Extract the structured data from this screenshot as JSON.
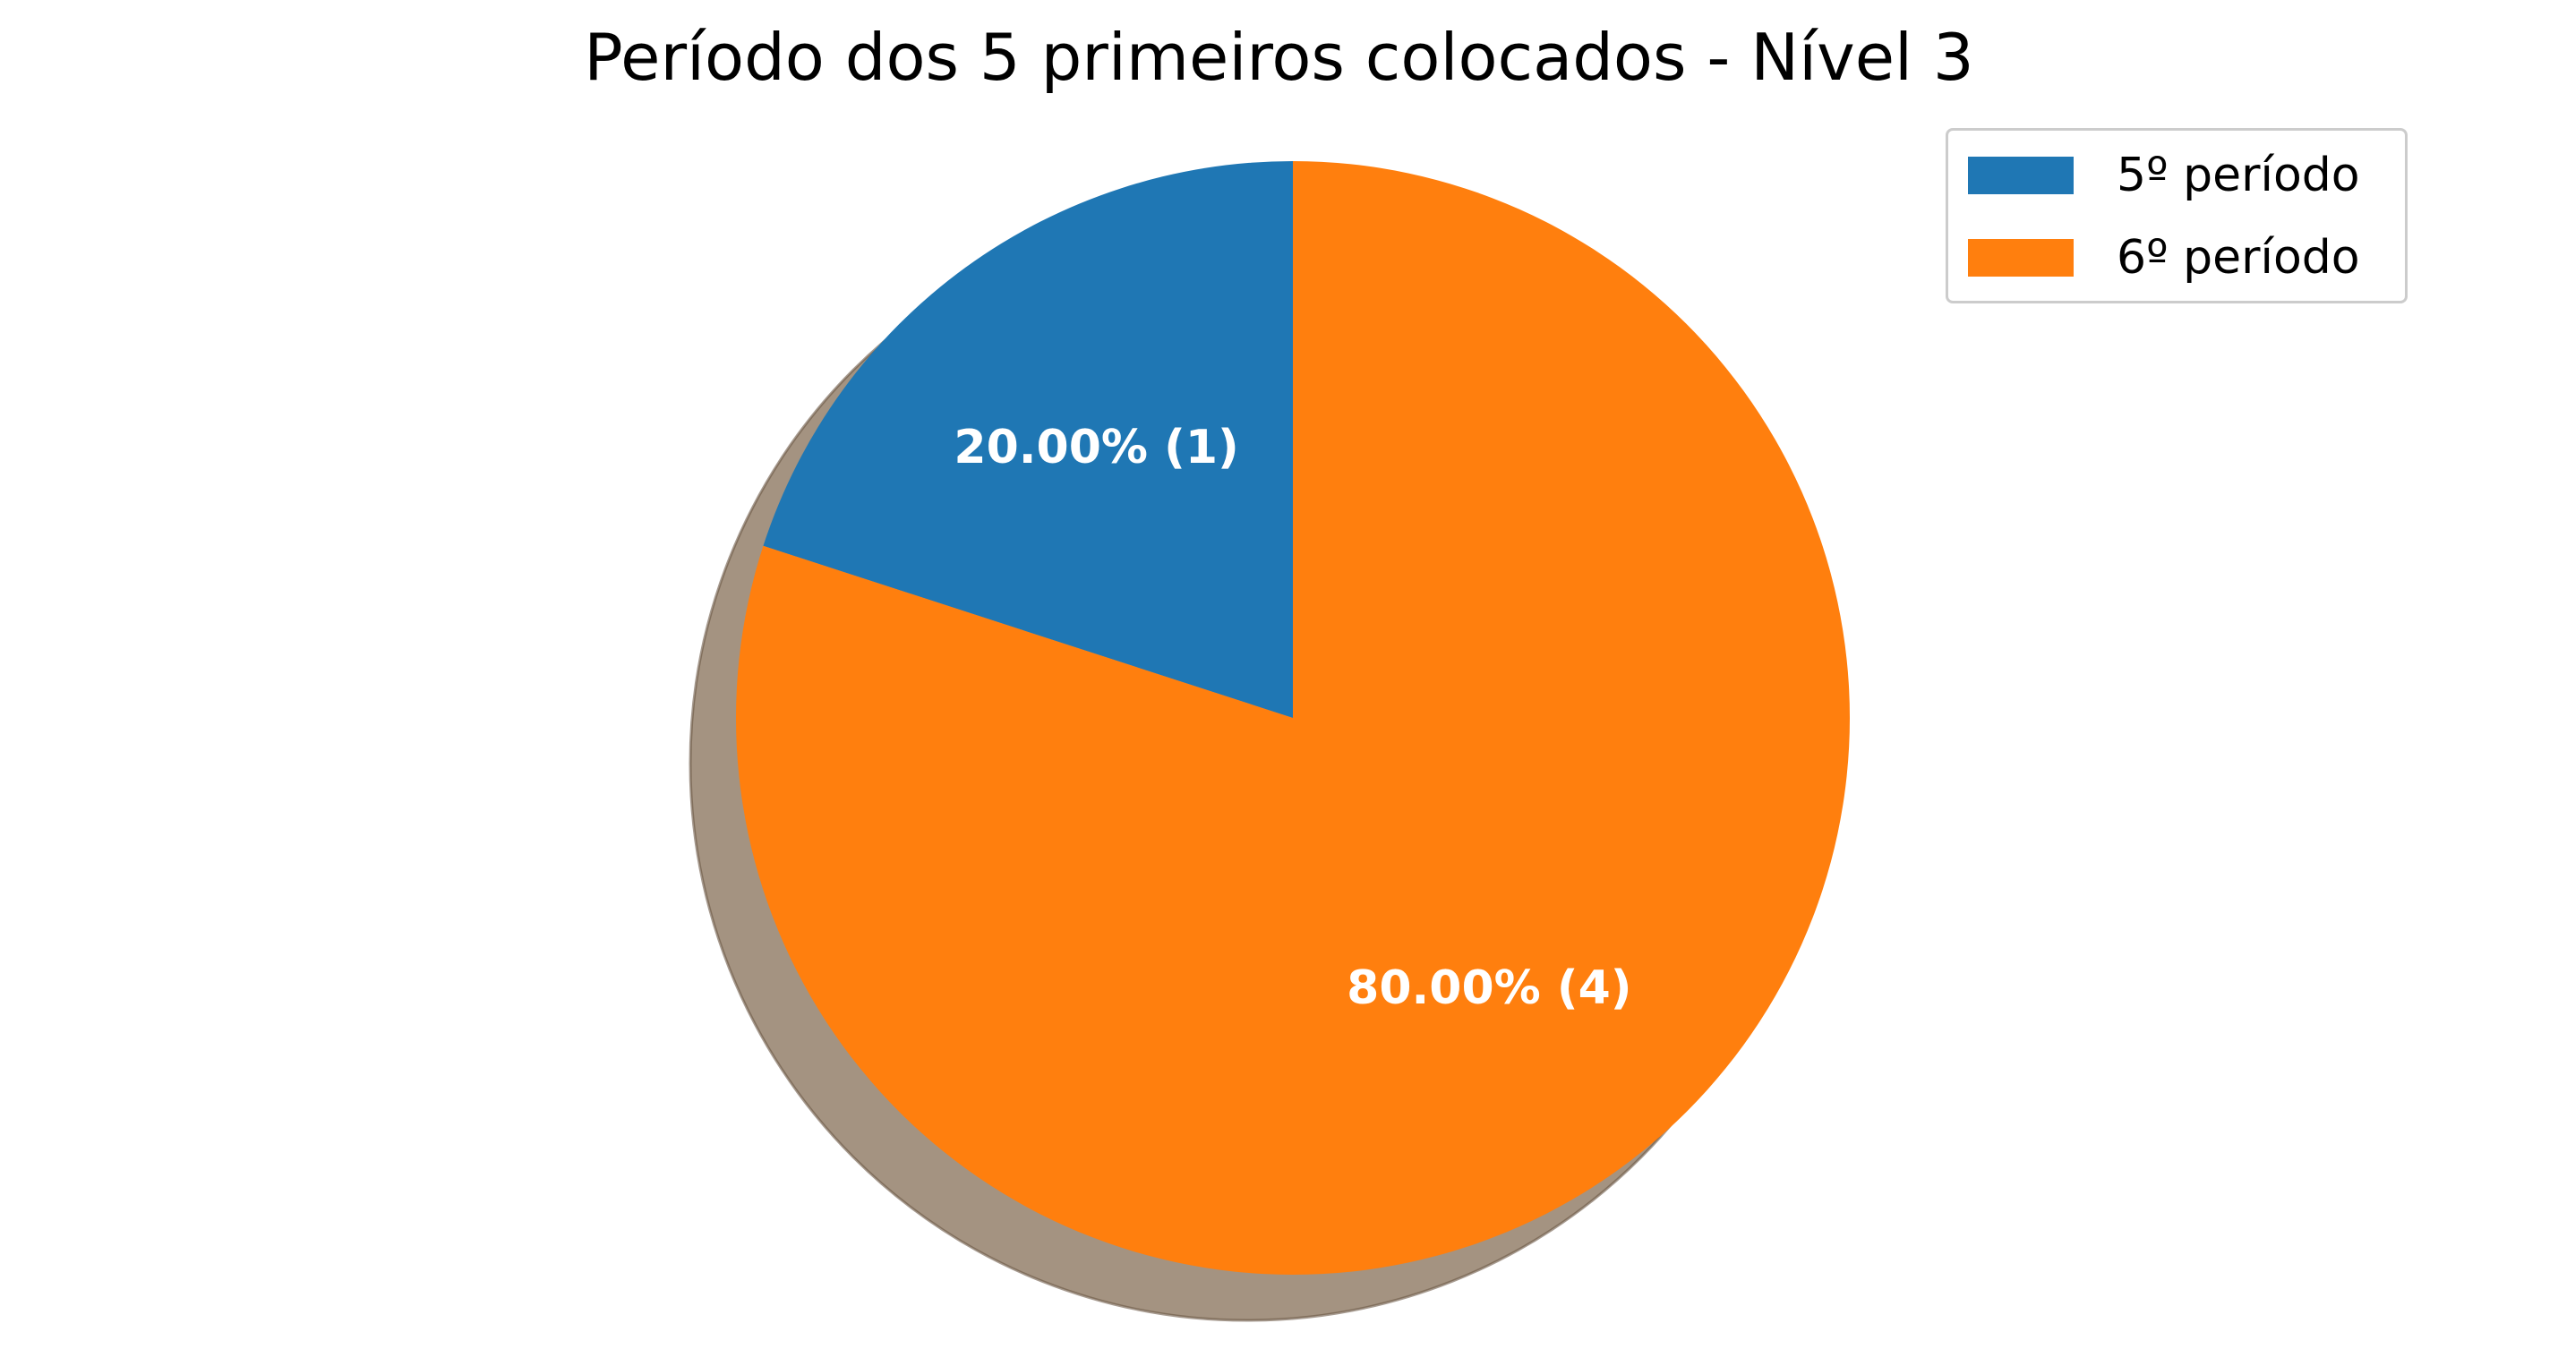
{
  "chart_data": {
    "type": "pie",
    "title": "Período dos 5 primeiros colocados - Nível 3",
    "legend": "top-right",
    "shadow": true,
    "start_angle_deg": 90,
    "direction": "counterclockwise",
    "slices": [
      {
        "name": "5º período",
        "value": 1,
        "percent": 20.0,
        "label": "20.00%  (1)",
        "color": "#1f77b4"
      },
      {
        "name": "6º período",
        "value": 4,
        "percent": 80.0,
        "label": "80.00%  (4)",
        "color": "#ff7f0e"
      }
    ],
    "shadow_color": "#a49381",
    "label_color": "#ffffff"
  }
}
